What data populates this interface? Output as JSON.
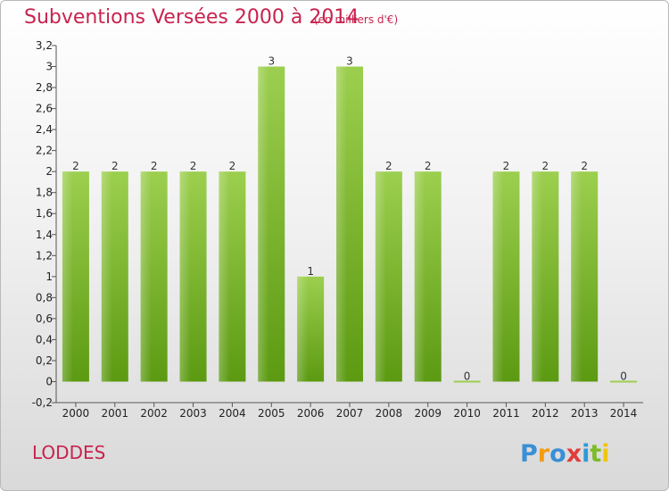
{
  "header": {
    "title": "Subventions Versées 2000 à 2014",
    "subtitle": "(en milliers d'€)"
  },
  "footer": {
    "commune": "LODDES",
    "logo_text": "Proxiti"
  },
  "colors": {
    "title": "#c8234f",
    "bar_top": "#9ccf4e",
    "bar_bottom": "#5c9a12"
  },
  "chart_data": {
    "type": "bar",
    "categories": [
      "2000",
      "2001",
      "2002",
      "2003",
      "2004",
      "2005",
      "2006",
      "2007",
      "2008",
      "2009",
      "2010",
      "2011",
      "2012",
      "2013",
      "2014"
    ],
    "values": [
      2,
      2,
      2,
      2,
      2,
      3,
      1,
      3,
      2,
      2,
      0,
      2,
      2,
      2,
      0
    ],
    "data_labels": [
      "2",
      "2",
      "2",
      "2",
      "2",
      "3",
      "1",
      "3",
      "2",
      "2",
      "0",
      "2",
      "2",
      "2",
      "0"
    ],
    "ylim": [
      -0.2,
      3.2
    ],
    "yticks": [
      -0.2,
      0,
      0.2,
      0.4,
      0.6,
      0.8,
      1,
      1.2,
      1.4,
      1.6,
      1.8,
      2,
      2.2,
      2.4,
      2.6,
      2.8,
      3,
      3.2
    ],
    "ytick_labels": [
      "-0,2",
      "0",
      "0,2",
      "0,4",
      "0,6",
      "0,8",
      "1",
      "1,2",
      "1,4",
      "1,6",
      "1,8",
      "2",
      "2,2",
      "2,4",
      "2,6",
      "2,8",
      "3",
      "3,2"
    ],
    "grid": false,
    "legend": "none"
  }
}
